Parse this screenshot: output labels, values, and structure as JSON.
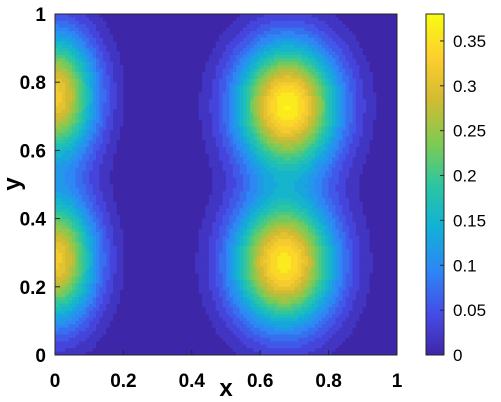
{
  "chart_data": {
    "type": "heatmap",
    "subtype": "filled-contour",
    "title": "",
    "xlabel": "x",
    "ylabel": "y",
    "xlim": [
      0,
      1
    ],
    "ylim": [
      0,
      1
    ],
    "x_ticks": [
      "0",
      "0.2",
      "0.4",
      "0.6",
      "0.8",
      "1"
    ],
    "y_ticks": [
      "0",
      "0.2",
      "0.4",
      "0.6",
      "0.8",
      "1"
    ],
    "grid": false,
    "colormap": "parula",
    "colorbar": {
      "placement": "right",
      "clim": [
        0,
        0.38
      ],
      "ticks": [
        "0",
        "0.05",
        "0.1",
        "0.15",
        "0.2",
        "0.25",
        "0.3",
        "0.35"
      ]
    },
    "peaks": [
      {
        "x": 0.0,
        "y": 0.76,
        "value": 0.33
      },
      {
        "x": 0.0,
        "y": 0.28,
        "value": 0.33
      },
      {
        "x": 0.68,
        "y": 0.73,
        "value": 0.38
      },
      {
        "x": 0.67,
        "y": 0.27,
        "value": 0.37
      }
    ],
    "min_value": 0.0
  }
}
